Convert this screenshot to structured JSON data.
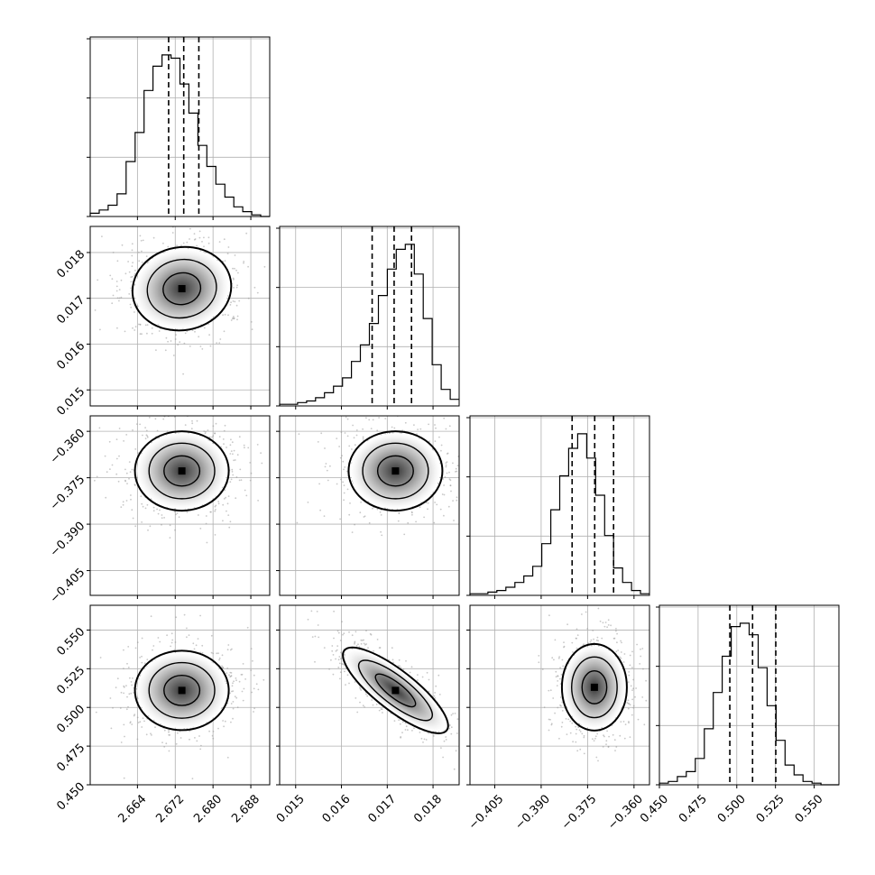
{
  "chart_data": {
    "type": "corner",
    "title": "",
    "parameters": [
      {
        "index": 0,
        "label": "",
        "range": [
          2.654,
          2.692
        ],
        "ticks": [
          2.664,
          2.672,
          2.68,
          2.688
        ],
        "tick_labels": [
          "2.664",
          "2.672",
          "2.680",
          "2.688"
        ],
        "quantiles": [
          2.6706,
          2.6738,
          2.677
        ]
      },
      {
        "index": 1,
        "label": "",
        "range": [
          0.01465,
          0.01857
        ],
        "ticks": [
          0.015,
          0.016,
          0.017,
          0.018
        ],
        "tick_labels": [
          "0.015",
          "0.016",
          "0.017",
          "0.018"
        ],
        "quantiles": [
          0.01667,
          0.01715,
          0.01753
        ]
      },
      {
        "index": 2,
        "label": "",
        "range": [
          -0.413,
          -0.355
        ],
        "ticks": [
          -0.405,
          -0.39,
          -0.375,
          -0.36
        ],
        "tick_labels": [
          "−0.405",
          "−0.390",
          "−0.375",
          "−0.360"
        ],
        "quantiles": [
          -0.38,
          -0.3727,
          -0.3666
        ]
      },
      {
        "index": 3,
        "label": "",
        "range": [
          0.45,
          0.566
        ],
        "ticks": [
          0.45,
          0.475,
          0.5,
          0.525,
          0.55
        ],
        "tick_labels": [
          "0.450",
          "0.475",
          "0.500",
          "0.525",
          "0.550"
        ],
        "quantiles": [
          0.4955,
          0.5102,
          0.5252
        ]
      }
    ],
    "histograms": [
      {
        "param": 0,
        "bin_range": [
          2.654,
          2.692
        ],
        "counts": [
          2,
          4,
          7,
          14,
          34,
          52,
          78,
          93,
          100,
          98,
          82,
          64,
          44,
          31,
          20,
          12,
          6,
          3,
          1,
          0
        ]
      },
      {
        "param": 1,
        "bin_range": [
          0.01465,
          0.01857
        ],
        "counts": [
          1,
          1,
          2,
          3,
          5,
          8,
          12,
          17,
          27,
          37,
          50,
          67,
          83,
          95,
          98,
          80,
          53,
          25,
          10,
          4
        ]
      },
      {
        "param": 2,
        "bin_range": [
          -0.413,
          -0.355
        ],
        "counts": [
          1,
          1,
          2,
          3,
          5,
          8,
          12,
          18,
          32,
          53,
          74,
          91,
          100,
          85,
          62,
          37,
          17,
          8,
          3,
          1
        ]
      },
      {
        "param": 3,
        "bin_range": [
          0.45,
          0.566
        ],
        "counts": [
          1,
          2,
          5,
          8,
          16,
          34,
          56,
          78,
          96,
          98,
          91,
          71,
          48,
          27,
          12,
          6,
          2,
          1,
          0,
          0
        ]
      }
    ],
    "pairs": [
      {
        "x_param": 0,
        "y_param": 1,
        "center": [
          2.6734,
          0.01721
        ],
        "contour_levels": 3,
        "shape": "roughly circular, slight positive tilt"
      },
      {
        "x_param": 0,
        "y_param": 2,
        "center": [
          2.6734,
          -0.3728
        ],
        "contour_levels": 3,
        "shape": "roughly circular"
      },
      {
        "x_param": 1,
        "y_param": 2,
        "center": [
          0.01718,
          -0.3728
        ],
        "contour_levels": 3,
        "shape": "roughly circular"
      },
      {
        "x_param": 0,
        "y_param": 3,
        "center": [
          2.6734,
          0.511
        ],
        "contour_levels": 3,
        "shape": "roughly circular"
      },
      {
        "x_param": 1,
        "y_param": 3,
        "center": [
          0.01718,
          0.511
        ],
        "contour_levels": 3,
        "shape": "strong negative correlation"
      },
      {
        "x_param": 2,
        "y_param": 3,
        "center": [
          -0.3728,
          0.513
        ],
        "contour_levels": 3,
        "shape": "elliptical, vertical elongation"
      }
    ],
    "grid": true,
    "colors": {
      "lines": "#000000",
      "grid": "#b0b0b0",
      "points": "#9a9a9a"
    }
  }
}
